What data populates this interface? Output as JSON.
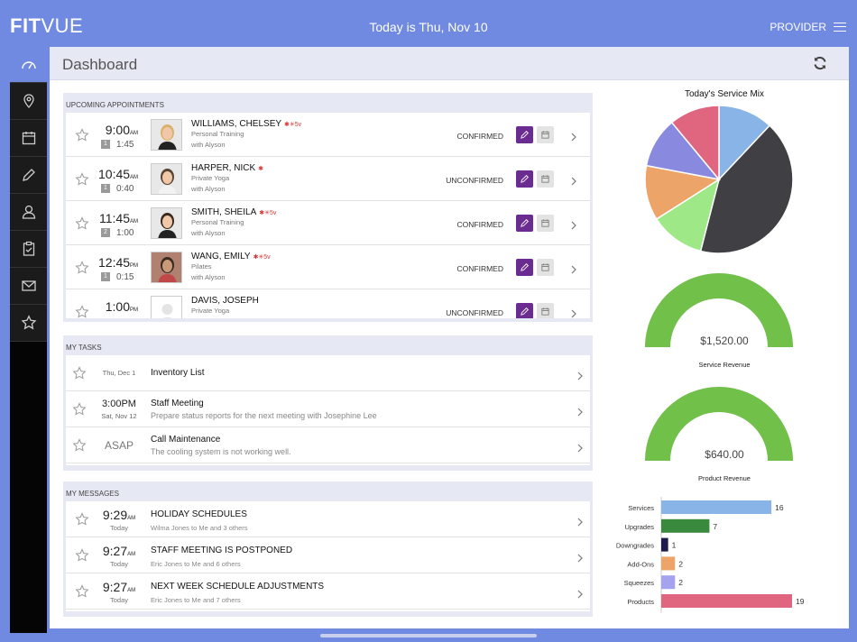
{
  "header": {
    "logo_bold": "FIT",
    "logo_light": "VUE",
    "today": "Today is Thu, Nov 10",
    "provider": "PROVIDER"
  },
  "sidebar": {
    "items": [
      {
        "icon": "dashboard-icon",
        "active": true
      },
      {
        "icon": "location-pin-icon"
      },
      {
        "icon": "calendar-icon"
      },
      {
        "icon": "pencil-icon"
      },
      {
        "icon": "user-icon"
      },
      {
        "icon": "clipboard-icon"
      },
      {
        "icon": "mail-icon"
      },
      {
        "icon": "star-icon"
      }
    ]
  },
  "page": {
    "title": "Dashboard"
  },
  "appointments": {
    "heading": "UPCOMING APPOINTMENTS",
    "items": [
      {
        "time": "9:00",
        "ampm": "AM",
        "count": "1",
        "duration": "1:45",
        "name": "WILLIAMS, CHELSEY",
        "symbols": "✱✳5v",
        "service": "Personal Training",
        "with": "with Alyson",
        "status": "CONFIRMED",
        "photo": "female-blonde"
      },
      {
        "time": "10:45",
        "ampm": "AM",
        "count": "1",
        "duration": "0:40",
        "name": "HARPER, NICK",
        "symbols": "✱",
        "service": "Private Yoga",
        "with": "with Alyson",
        "status": "UNCONFIRMED",
        "photo": "male"
      },
      {
        "time": "11:45",
        "ampm": "AM",
        "count": "2",
        "duration": "1:00",
        "name": "SMITH, SHEILA",
        "symbols": "✱✳5v",
        "service": "Personal Training",
        "with": "with Alyson",
        "status": "CONFIRMED",
        "photo": "female-brunette"
      },
      {
        "time": "12:45",
        "ampm": "PM",
        "count": "1",
        "duration": "0:15",
        "name": "WANG, EMILY",
        "symbols": "✱✳5v",
        "service": "Pilates",
        "with": "with Alyson",
        "status": "CONFIRMED",
        "photo": "female-dark"
      },
      {
        "time": "1:00",
        "ampm": "PM",
        "count": "",
        "duration": "",
        "name": "DAVIS, JOSEPH",
        "symbols": "",
        "service": "Private Yoga",
        "with": "",
        "status": "UNCONFIRMED",
        "photo": "placeholder"
      }
    ]
  },
  "tasks": {
    "heading": "MY TASKS",
    "items": [
      {
        "date_big": "",
        "date_small": "Thu, Dec 1",
        "title": "Inventory List",
        "sub": ""
      },
      {
        "date_big": "3:00PM",
        "date_small": "Sat, Nov 12",
        "title": "Staff Meeting",
        "sub": "Prepare status reports for the next meeting with Josephine Lee"
      },
      {
        "date_big": "ASAP",
        "date_small": "",
        "title": "Call Maintenance",
        "sub": "The cooling system is not working well."
      }
    ]
  },
  "messages": {
    "heading": "MY MESSAGES",
    "items": [
      {
        "time": "9:29",
        "ampm": "AM",
        "day": "Today",
        "title": "HOLIDAY SCHEDULES",
        "sub": "Wilma Jones to Me and 3 others"
      },
      {
        "time": "9:27",
        "ampm": "AM",
        "day": "Today",
        "title": "STAFF MEETING IS POSTPONED",
        "sub": "Eric Jones to Me and 6 others"
      },
      {
        "time": "9:27",
        "ampm": "AM",
        "day": "Today",
        "title": "NEXT WEEK SCHEDULE ADJUSTMENTS",
        "sub": "Eric Jones to Me and 7 others"
      }
    ]
  },
  "chart_data": [
    {
      "type": "pie",
      "title": "Today's Service Mix",
      "slices": [
        {
          "value": 12,
          "color": "#89b4e8"
        },
        {
          "value": 42,
          "color": "#3f3f44"
        },
        {
          "value": 12,
          "color": "#9fe888"
        },
        {
          "value": 12,
          "color": "#eda468"
        },
        {
          "value": 11,
          "color": "#8a89e0"
        },
        {
          "value": 11,
          "color": "#e06680"
        }
      ]
    },
    {
      "type": "gauge",
      "title": "Service Revenue",
      "value_label": "$1,520.00",
      "fraction": 1.0,
      "color": "#71c04a"
    },
    {
      "type": "gauge",
      "title": "Product Revenue",
      "value_label": "$640.00",
      "fraction": 1.0,
      "color": "#71c04a"
    },
    {
      "type": "bar",
      "orientation": "horizontal",
      "categories": [
        "Services",
        "Upgrades",
        "Downgrades",
        "Add-Ons",
        "Squeezes",
        "Products"
      ],
      "values": [
        16,
        7,
        1,
        2,
        2,
        19
      ],
      "colors": [
        "#89b4e8",
        "#3a8a3e",
        "#1d1a4e",
        "#eda468",
        "#a5a3ee",
        "#e06680"
      ],
      "xlim": [
        0,
        19
      ]
    }
  ]
}
